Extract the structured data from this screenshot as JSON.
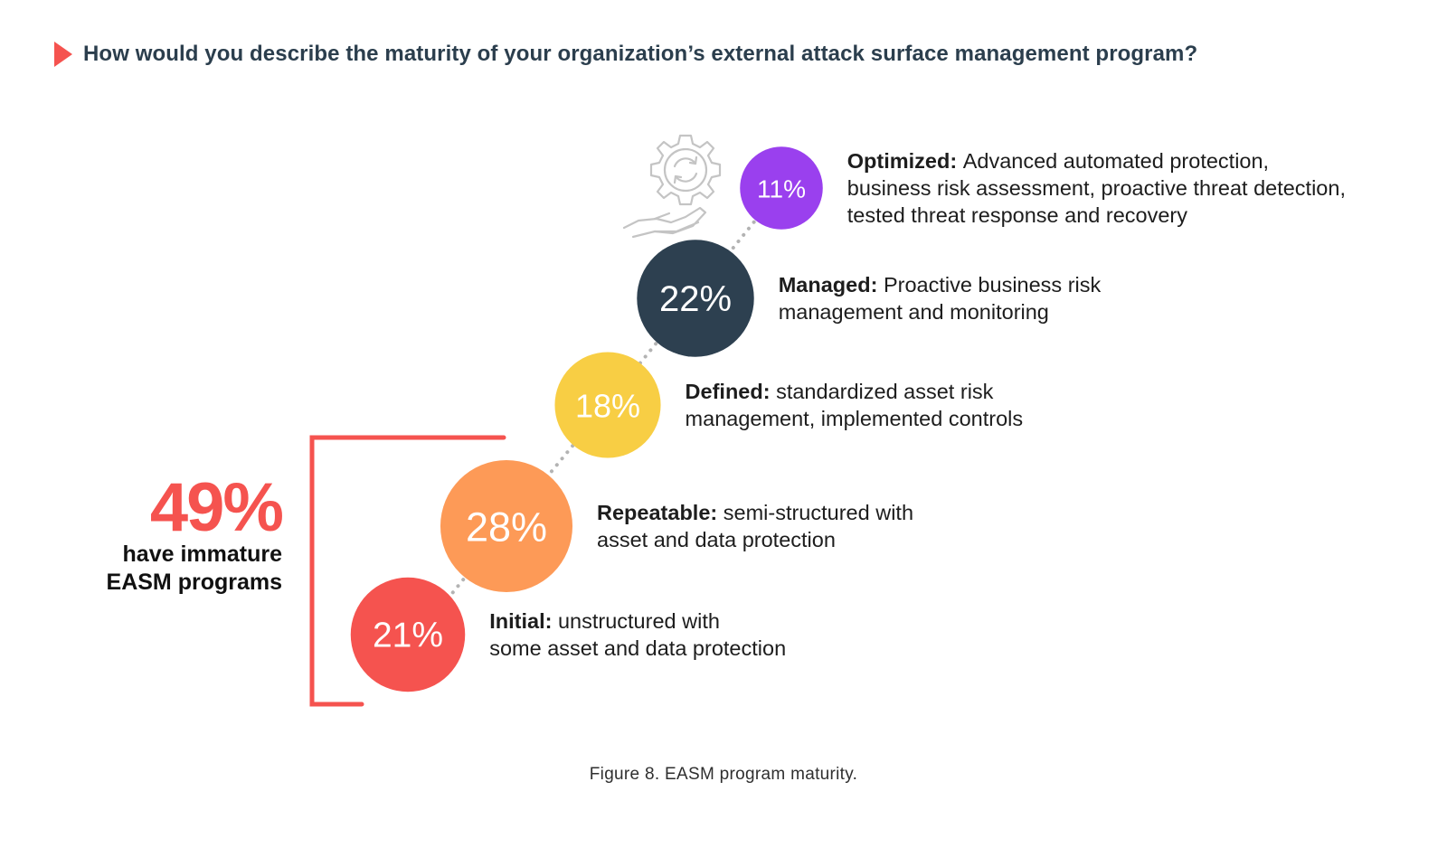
{
  "title": "How would you describe the maturity of your organization’s external attack surface management program?",
  "chart_data": {
    "type": "bubble",
    "categories": [
      "Initial",
      "Repeatable",
      "Defined",
      "Managed",
      "Optimized"
    ],
    "values": [
      21,
      28,
      18,
      22,
      11
    ],
    "value_labels": [
      "21%",
      "28%",
      "18%",
      "22%",
      "11%"
    ],
    "descriptions": [
      "unstructured with\nsome asset and data protection",
      "semi-structured with\nasset and data protection",
      "standardized asset risk\nmanagement, implemented controls",
      "Proactive business risk\nmanagement and monitoring",
      "Advanced automated protection,\nbusiness risk assessment, proactive threat detection,\ntested threat response and recovery"
    ],
    "colors": [
      "#f5534f",
      "#fd9a57",
      "#f8ce44",
      "#2d4050",
      "#9a40ee"
    ]
  },
  "callout": {
    "value": "49%",
    "text": "have immature\nEASM programs",
    "color": "#f5534f"
  },
  "icon": "gear-hand-icon",
  "caption": "Figure 8. EASM program maturity."
}
